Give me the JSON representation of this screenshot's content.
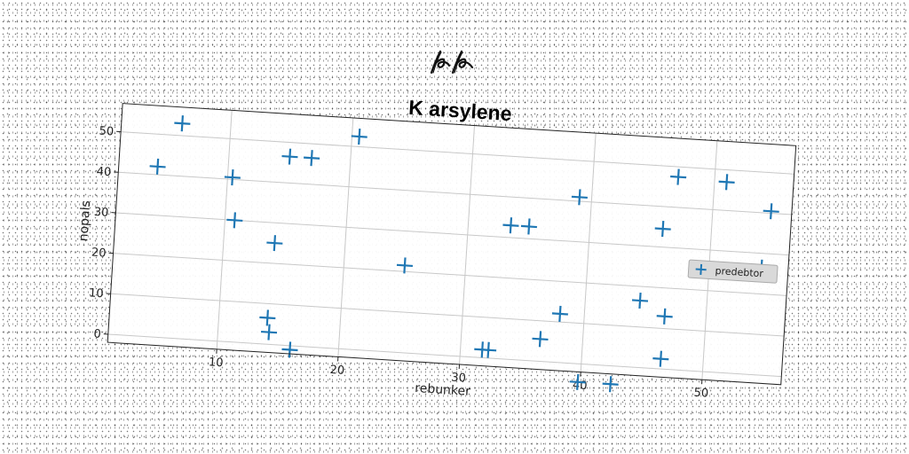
{
  "signature_text": "kp",
  "chart_data": {
    "type": "scatter",
    "title": "K arsylene",
    "xlabel": "rebunker",
    "ylabel": "nopals",
    "xlim": [
      1,
      56.5
    ],
    "ylim": [
      -2,
      57
    ],
    "xticks": [
      10,
      20,
      30,
      40,
      50
    ],
    "yticks": [
      0,
      10,
      20,
      30,
      40,
      50
    ],
    "grid": true,
    "legend_placement": "right",
    "marker": "plus",
    "color": "#1f77b4",
    "series": [
      {
        "name": "predebtor",
        "points": [
          [
            4.2,
            42
          ],
          [
            6.0,
            53
          ],
          [
            10.4,
            40.5
          ],
          [
            10.8,
            30
          ],
          [
            14.2,
            25
          ],
          [
            15.0,
            46.5
          ],
          [
            16.8,
            46.5
          ],
          [
            20.6,
            52.5
          ],
          [
            14.0,
            6.5
          ],
          [
            14.2,
            3
          ],
          [
            16.0,
            -1
          ],
          [
            25.0,
            21.5
          ],
          [
            31.8,
            2
          ],
          [
            32.3,
            2
          ],
          [
            33.5,
            33
          ],
          [
            35.0,
            33
          ],
          [
            36.5,
            5.5
          ],
          [
            38.0,
            12
          ],
          [
            39.0,
            41
          ],
          [
            39.8,
            -4.5
          ],
          [
            42.5,
            -4.5
          ],
          [
            44.5,
            16.5
          ],
          [
            46.0,
            34.5
          ],
          [
            46.5,
            2.5
          ],
          [
            46.6,
            13
          ],
          [
            47.0,
            47.5
          ],
          [
            51.0,
            47
          ],
          [
            54.3,
            26.5
          ],
          [
            54.8,
            40.5
          ]
        ]
      }
    ]
  }
}
